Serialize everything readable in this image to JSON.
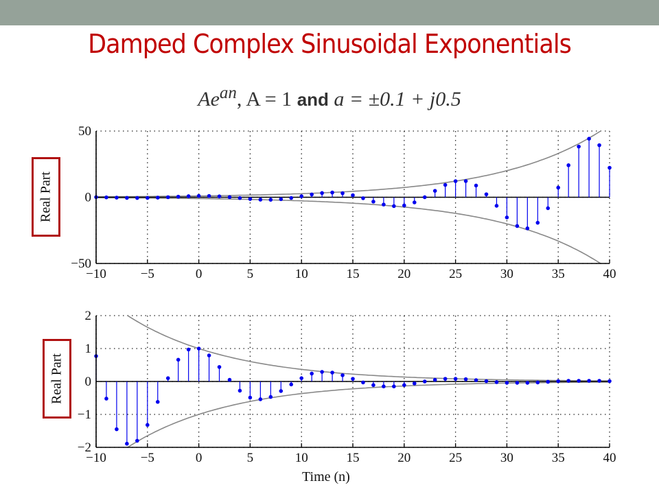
{
  "slide": {
    "title": "Damped Complex Sinusoidal Exponentials",
    "formula": {
      "part1": "Ae",
      "sup": "an",
      "part2": ", A = 1 ",
      "and": "and",
      "part3": " a = ±0.1 + j0.5"
    }
  },
  "colors": {
    "band": "#95a299",
    "title": "#c00000",
    "stem": "#0000ee",
    "envelope": "#888888",
    "label_box": "#b01010"
  },
  "chart_data": [
    {
      "type": "stem",
      "ylabel": "Real Part",
      "xlabel": "",
      "xlim": [
        -10,
        40
      ],
      "ylim": [
        -50,
        50
      ],
      "xticks": [
        "−10",
        "−5",
        "0",
        "5",
        "10",
        "15",
        "20",
        "25",
        "30",
        "35",
        "40"
      ],
      "yticks": [
        "50",
        "0",
        "−50"
      ],
      "ytick_values": [
        50,
        0,
        -50
      ],
      "grid": true,
      "envelope_rate": 0.1,
      "x_start": -10,
      "values": [
        0.1,
        -0.09,
        -0.29,
        -0.47,
        -0.54,
        -0.49,
        -0.28,
        0.05,
        0.44,
        0.79,
        1.0,
        0.97,
        0.66,
        0.1,
        -0.62,
        -1.32,
        -1.8,
        -1.89,
        -1.45,
        -0.52,
        0.77,
        2.13,
        3.19,
        3.58,
        3.06,
        1.55,
        -0.72,
        -3.3,
        -5.51,
        -6.67,
        -6.2,
        -3.88,
        0.04,
        4.82,
        9.3,
        12.16,
        12.22,
        8.85,
        2.25,
        -6.45,
        -15.26,
        -21.71,
        -23.5,
        -19.25,
        -8.25,
        7.27,
        24.17,
        38.28,
        44.2,
        39.31,
        22.28
      ]
    },
    {
      "type": "stem",
      "ylabel": "Real Part",
      "xlabel": "Time (n)",
      "xlim": [
        -10,
        40
      ],
      "ylim": [
        -2,
        2
      ],
      "xticks": [
        "−10",
        "−5",
        "0",
        "5",
        "10",
        "15",
        "20",
        "25",
        "30",
        "35",
        "40"
      ],
      "yticks": [
        "2",
        "1",
        "0",
        "−1",
        "−2"
      ],
      "ytick_values": [
        2,
        1,
        0,
        -1,
        -2
      ],
      "grid": true,
      "envelope_rate": -0.1,
      "x_start": -10,
      "values": [
        0.77,
        -0.52,
        -1.45,
        -1.89,
        -1.8,
        -1.32,
        -0.62,
        0.1,
        0.66,
        0.97,
        1.0,
        0.79,
        0.44,
        0.05,
        -0.28,
        -0.49,
        -0.54,
        -0.47,
        -0.29,
        -0.09,
        0.1,
        0.24,
        0.29,
        0.27,
        0.19,
        0.08,
        -0.03,
        -0.11,
        -0.15,
        -0.15,
        -0.11,
        -0.06,
        0.0,
        0.05,
        0.08,
        0.08,
        0.07,
        0.04,
        0.01,
        -0.02,
        -0.04,
        -0.04,
        -0.04,
        -0.03,
        -0.01,
        0.01,
        0.02,
        0.02,
        0.02,
        0.02,
        0.01
      ]
    }
  ]
}
